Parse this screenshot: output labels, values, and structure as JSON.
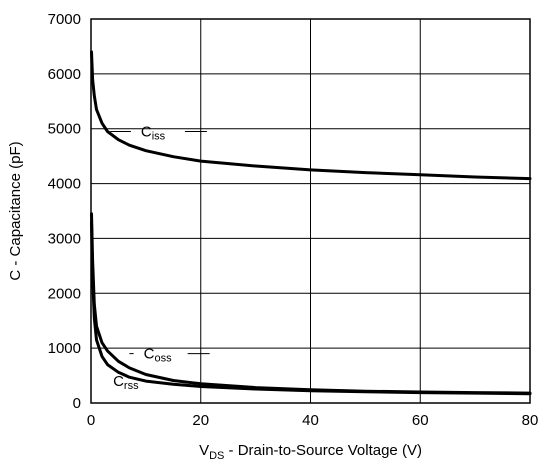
{
  "chart_data": {
    "type": "line",
    "title": "",
    "xlabel": {
      "main": "V",
      "sub": "DS",
      "rest": " - Drain-to-Source Voltage (V)"
    },
    "ylabel": "C - Capacitance (pF)",
    "xlim": [
      0,
      80
    ],
    "ylim": [
      0,
      7000
    ],
    "xticks": [
      0,
      20,
      40,
      60,
      80
    ],
    "yticks": [
      0,
      1000,
      2000,
      3000,
      4000,
      5000,
      6000,
      7000
    ],
    "grid": true,
    "series": [
      {
        "name": {
          "main": "C",
          "sub": "iss"
        },
        "x": [
          0.1,
          0.3,
          0.6,
          1,
          2,
          3,
          5,
          7,
          10,
          15,
          20,
          30,
          40,
          50,
          60,
          70,
          80
        ],
        "y": [
          6400,
          5900,
          5600,
          5350,
          5100,
          4950,
          4800,
          4700,
          4600,
          4490,
          4410,
          4320,
          4250,
          4200,
          4160,
          4120,
          4090
        ]
      },
      {
        "name": {
          "main": "C",
          "sub": "oss"
        },
        "x": [
          0.1,
          0.3,
          0.6,
          1,
          2,
          3,
          5,
          7,
          10,
          15,
          20,
          30,
          40,
          50,
          60,
          70,
          80
        ],
        "y": [
          3450,
          2600,
          1800,
          1400,
          1100,
          950,
          760,
          640,
          520,
          410,
          350,
          280,
          240,
          215,
          200,
          190,
          180
        ]
      },
      {
        "name": {
          "main": "C",
          "sub": "rss"
        },
        "x": [
          0.1,
          0.3,
          0.6,
          1,
          2,
          3,
          5,
          7,
          10,
          15,
          20,
          30,
          40,
          50,
          60,
          70,
          80
        ],
        "y": [
          3300,
          2300,
          1550,
          1150,
          850,
          700,
          560,
          470,
          400,
          340,
          300,
          255,
          225,
          205,
          190,
          180,
          170
        ]
      }
    ],
    "labels": [
      {
        "series": 0,
        "at_x": 3.5,
        "at_y": 4950,
        "text_x": 8,
        "text_y": 4950
      },
      {
        "series": 1,
        "at_x": 7,
        "at_y": 900,
        "text_x": 8.5,
        "text_y": 900
      },
      {
        "series": 2,
        "at_x": 2.2,
        "at_y": 250,
        "text_x": 2.2,
        "text_y": 200
      }
    ]
  }
}
